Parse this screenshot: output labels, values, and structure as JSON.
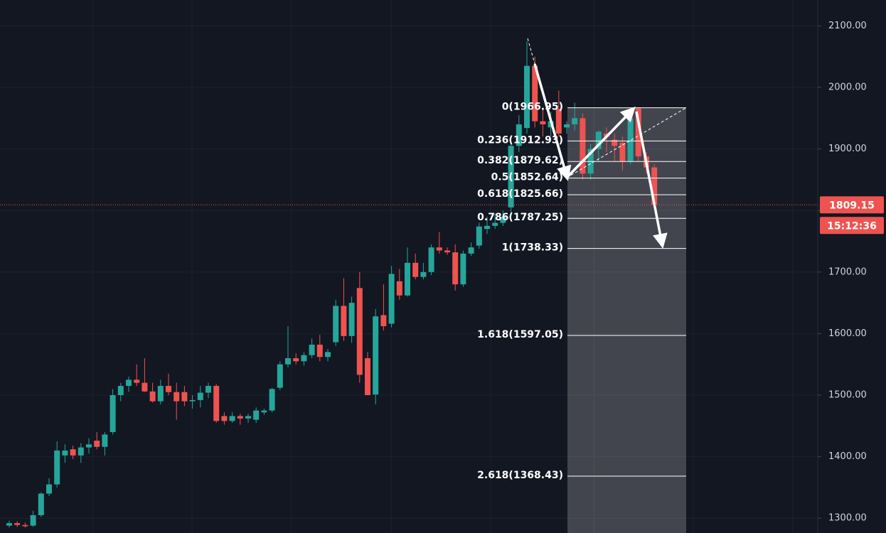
{
  "chart_data": {
    "type": "candlestick",
    "up_color": "#26a69a",
    "down_color": "#ef5350",
    "ylim": [
      1276,
      2142
    ],
    "yticks": [
      {
        "value": 1300,
        "label": "1300.00"
      },
      {
        "value": 1400,
        "label": "1400.00"
      },
      {
        "value": 1500,
        "label": "1500.00"
      },
      {
        "value": 1600,
        "label": "1600.00"
      },
      {
        "value": 1700,
        "label": "1700.00"
      },
      {
        "value": 1800,
        "label": "1800.00"
      },
      {
        "value": 1900,
        "label": "1900.00"
      },
      {
        "value": 2000,
        "label": "2000.00"
      },
      {
        "value": 2100,
        "label": "2100.00"
      }
    ],
    "grid": true,
    "open": [
      1288,
      1292,
      1289,
      1288,
      1305,
      1340,
      1355,
      1402,
      1412,
      1402,
      1415,
      1426,
      1416,
      1440,
      1500,
      1515,
      1525,
      1520,
      1506,
      1490,
      1515,
      1505,
      1505,
      1490,
      1492,
      1504,
      1515,
      1466,
      1458,
      1466,
      1462,
      1460,
      1472,
      1475,
      1512,
      1550,
      1560,
      1555,
      1565,
      1582,
      1562,
      1586,
      1645,
      1596,
      1674,
      1560,
      1501,
      1630,
      1616,
      1685,
      1662,
      1715,
      1692,
      1700,
      1740,
      1735,
      1732,
      1680,
      1730,
      1743,
      1770,
      1775,
      1780,
      1805,
      1905,
      1934,
      2035,
      1945,
      1935,
      1965,
      1935,
      1940,
      1950,
      1860,
      1900,
      1925,
      1915,
      1910,
      1880,
      1966,
      1888,
      1870
    ],
    "high": [
      1296,
      1295,
      1293,
      1312,
      1342,
      1365,
      1425,
      1420,
      1418,
      1422,
      1430,
      1440,
      1440,
      1510,
      1520,
      1530,
      1550,
      1560,
      1520,
      1525,
      1535,
      1520,
      1515,
      1500,
      1515,
      1520,
      1518,
      1472,
      1472,
      1470,
      1470,
      1480,
      1478,
      1512,
      1555,
      1612,
      1568,
      1570,
      1592,
      1598,
      1575,
      1655,
      1690,
      1660,
      1700,
      1570,
      1640,
      1680,
      1710,
      1705,
      1740,
      1730,
      1715,
      1745,
      1765,
      1740,
      1745,
      1735,
      1748,
      1780,
      1790,
      1795,
      1800,
      1912,
      1955,
      2075,
      2050,
      1965,
      1960,
      1995,
      1945,
      1975,
      1958,
      1908,
      1930,
      1935,
      1925,
      1920,
      1955,
      1968,
      1895,
      1875
    ],
    "low": [
      1285,
      1286,
      1285,
      1286,
      1302,
      1336,
      1350,
      1390,
      1396,
      1390,
      1405,
      1412,
      1402,
      1436,
      1490,
      1505,
      1515,
      1505,
      1488,
      1485,
      1500,
      1460,
      1482,
      1478,
      1480,
      1495,
      1455,
      1452,
      1455,
      1452,
      1455,
      1455,
      1468,
      1472,
      1508,
      1545,
      1550,
      1548,
      1560,
      1555,
      1555,
      1580,
      1588,
      1585,
      1520,
      1500,
      1485,
      1605,
      1610,
      1655,
      1660,
      1688,
      1688,
      1695,
      1730,
      1728,
      1670,
      1676,
      1726,
      1738,
      1762,
      1770,
      1775,
      1790,
      1895,
      1925,
      1935,
      1920,
      1920,
      1920,
      1925,
      1930,
      1850,
      1850,
      1880,
      1895,
      1880,
      1865,
      1875,
      1880,
      1860,
      1805
    ],
    "close": [
      1292,
      1289,
      1287,
      1305,
      1340,
      1355,
      1410,
      1410,
      1402,
      1415,
      1420,
      1416,
      1436,
      1500,
      1515,
      1525,
      1520,
      1506,
      1490,
      1515,
      1505,
      1490,
      1490,
      1492,
      1504,
      1515,
      1458,
      1458,
      1466,
      1462,
      1466,
      1475,
      1475,
      1510,
      1550,
      1560,
      1555,
      1565,
      1582,
      1562,
      1570,
      1645,
      1596,
      1650,
      1533,
      1500,
      1628,
      1612,
      1697,
      1662,
      1715,
      1692,
      1700,
      1740,
      1735,
      1732,
      1680,
      1730,
      1740,
      1774,
      1775,
      1780,
      1790,
      1905,
      1940,
      2035,
      1945,
      1940,
      1945,
      1925,
      1940,
      1950,
      1860,
      1900,
      1928,
      1920,
      1905,
      1880,
      1950,
      1888,
      1870,
      1809.15
    ],
    "fib_levels": [
      {
        "value": 1966.95,
        "label": "0(1966.95)"
      },
      {
        "value": 1912.93,
        "label": "0.236(1912.93)"
      },
      {
        "value": 1879.62,
        "label": "0.382(1879.62)"
      },
      {
        "value": 1852.64,
        "label": "0.5(1852.64)"
      },
      {
        "value": 1825.66,
        "label": "0.618(1825.66)"
      },
      {
        "value": 1787.25,
        "label": "0.786(1787.25)"
      },
      {
        "value": 1738.33,
        "label": "1(1738.33)"
      },
      {
        "value": 1597.05,
        "label": "1.618(1597.05)"
      },
      {
        "value": 1368.43,
        "label": "2.618(1368.43)"
      }
    ],
    "last_price": 1809.15,
    "countdown": "15:12:36"
  }
}
